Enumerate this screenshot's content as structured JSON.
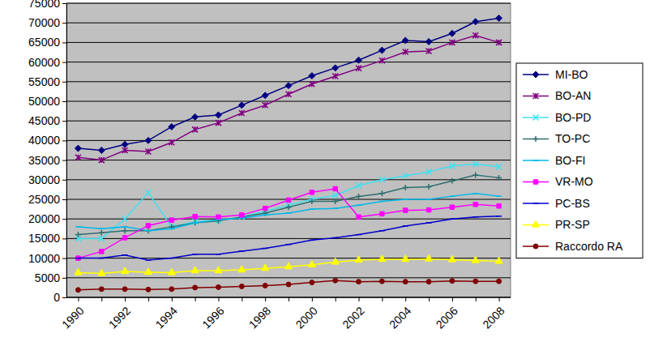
{
  "chart_data": {
    "type": "line",
    "categories": [
      "1990",
      null,
      "1992",
      null,
      "1994",
      null,
      "1996",
      null,
      "1998",
      null,
      "2000",
      null,
      "2002",
      null,
      "2004",
      null,
      "2006",
      null,
      "2008"
    ],
    "series": [
      {
        "name": "MI-BO",
        "color": "#000080",
        "marker": "diamond",
        "line_style": "solid",
        "values": [
          38000,
          37500,
          39000,
          40000,
          43500,
          46000,
          46500,
          49000,
          51500,
          54000,
          56500,
          58500,
          60500,
          63000,
          65500,
          65200,
          67300,
          70300,
          71200
        ]
      },
      {
        "name": "BO-AN",
        "color": "#800080",
        "marker": "asterisk",
        "line_style": "solid",
        "values": [
          35700,
          35000,
          37500,
          37200,
          39500,
          42800,
          44500,
          47000,
          49000,
          51800,
          54400,
          56400,
          58400,
          60400,
          62600,
          62800,
          65000,
          66800,
          65000
        ]
      },
      {
        "name": "BO-PD",
        "color": "#40E0F0",
        "marker": "x",
        "line_style": "solid",
        "values": [
          15000,
          15000,
          20000,
          26700,
          18000,
          19300,
          19600,
          20500,
          22000,
          23500,
          25000,
          26000,
          28500,
          30000,
          31000,
          32000,
          33500,
          34000,
          33300
        ]
      },
      {
        "name": "TO-PC",
        "color": "#2F6F6F",
        "marker": "plus",
        "line_style": "solid",
        "values": [
          16000,
          16500,
          17000,
          17000,
          18000,
          19000,
          19500,
          20500,
          21500,
          23000,
          24500,
          24500,
          25700,
          26500,
          28000,
          28200,
          29700,
          31200,
          30500
        ]
      },
      {
        "name": "BO-FI",
        "color": "#00B8E8",
        "marker": "dash",
        "line_style": "solid",
        "values": [
          18000,
          17500,
          18000,
          17000,
          17500,
          19000,
          19800,
          20200,
          21000,
          21500,
          22500,
          22700,
          23500,
          24500,
          25000,
          25000,
          25800,
          26500,
          25800
        ]
      },
      {
        "name": "VR-MO",
        "color": "#FF00FF",
        "marker": "square",
        "line_style": "solid",
        "values": [
          10000,
          11700,
          15200,
          18300,
          19700,
          20600,
          20500,
          21000,
          22700,
          24800,
          26800,
          27700,
          20500,
          21300,
          22200,
          22300,
          23000,
          23700,
          23300
        ]
      },
      {
        "name": "PC-BS",
        "color": "#0000CC",
        "marker": "dash",
        "line_style": "solid",
        "values": [
          10000,
          10000,
          10800,
          9500,
          10000,
          11000,
          11000,
          11800,
          12500,
          13500,
          14600,
          15200,
          16000,
          17000,
          18200,
          19000,
          20000,
          20500,
          20700
        ]
      },
      {
        "name": "PR-SP",
        "color": "#FFFF00",
        "marker": "triangle",
        "line_style": "solid",
        "values": [
          6300,
          6100,
          6600,
          6400,
          6300,
          6800,
          6800,
          7000,
          7400,
          7800,
          8300,
          9000,
          9500,
          9700,
          9700,
          9800,
          9600,
          9400,
          9200
        ]
      },
      {
        "name": "Raccordo RA",
        "color": "#800000",
        "marker": "circle",
        "line_style": "solid",
        "values": [
          1900,
          2100,
          2100,
          2000,
          2100,
          2500,
          2600,
          2800,
          3000,
          3300,
          3800,
          4300,
          4000,
          4100,
          4000,
          4000,
          4200,
          4100,
          4100
        ]
      }
    ],
    "ylim": [
      0,
      75000
    ],
    "yticks": [
      0,
      5000,
      10000,
      15000,
      20000,
      25000,
      30000,
      35000,
      40000,
      45000,
      50000,
      55000,
      60000,
      65000,
      70000,
      75000
    ],
    "grid": true,
    "legend": "right"
  }
}
